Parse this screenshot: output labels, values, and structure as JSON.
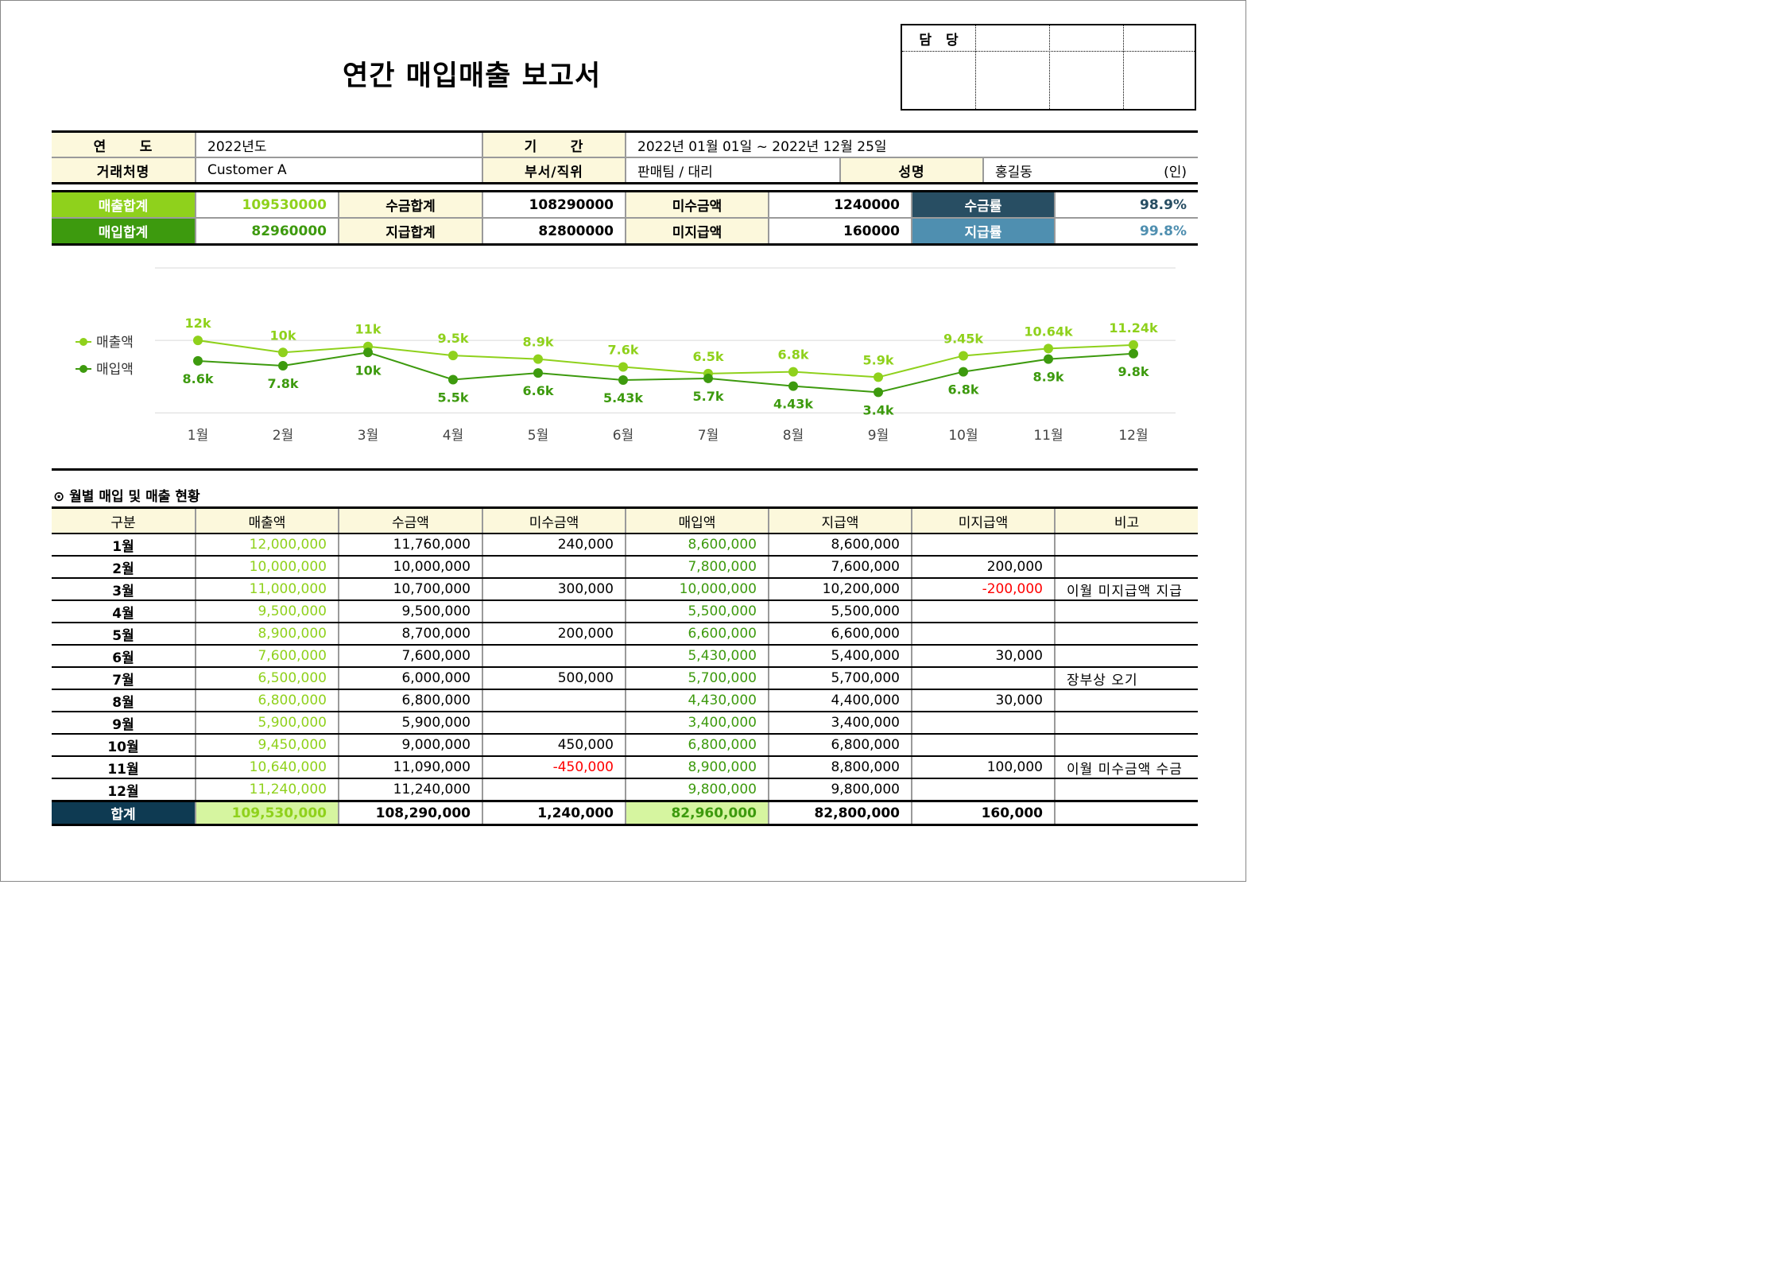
{
  "title": "연간 매입매출 보고서",
  "approval": {
    "label": "담당"
  },
  "info": {
    "year_label": "연      도",
    "year_value": "2022년도",
    "period_label": "기      간",
    "period_value": "2022년 01월 01일 ~ 2022년 12월 25일",
    "client_label": "거래처명",
    "client_value": "Customer A",
    "dept_label": "부서/직위",
    "dept_value": "판매팀 / 대리",
    "name_label": "성명",
    "name_value": "홍길동",
    "seal": "(인)"
  },
  "summary": {
    "sales_total_label": "매출합계",
    "sales_total": "109530000",
    "collected_total_label": "수금합계",
    "collected_total": "108290000",
    "uncollected_label": "미수금액",
    "uncollected": "1240000",
    "collection_rate_label": "수금률",
    "collection_rate": "98.9%",
    "purchase_total_label": "매입합계",
    "purchase_total": "82960000",
    "paid_total_label": "지급합계",
    "paid_total": "82800000",
    "unpaid_label": "미지급액",
    "unpaid": "160000",
    "payment_rate_label": "지급률",
    "payment_rate": "99.8%"
  },
  "colors": {
    "sales": "#8fd11c",
    "purchase": "#3d9a0e",
    "sales_header": "#8fd11c",
    "purchase_header": "#3d9a0e",
    "collection_rate_header": "#284e63",
    "payment_rate_header": "#4f8fb0",
    "negative": "#ff0000",
    "total_header": "#0e3a52",
    "total_highlight": "#d6f5a0",
    "label_bg": "#fcf8dc"
  },
  "chart_data": {
    "type": "line",
    "categories": [
      "1월",
      "2월",
      "3월",
      "4월",
      "5월",
      "6월",
      "7월",
      "8월",
      "9월",
      "10월",
      "11월",
      "12월"
    ],
    "series": [
      {
        "name": "매출액",
        "values": [
          12,
          10,
          11,
          9.5,
          8.9,
          7.6,
          6.5,
          6.8,
          5.9,
          9.45,
          10.64,
          11.24
        ],
        "labels": [
          "12k",
          "10k",
          "11k",
          "9.5k",
          "8.9k",
          "7.6k",
          "6.5k",
          "6.8k",
          "5.9k",
          "9.45k",
          "10.64k",
          "11.24k"
        ]
      },
      {
        "name": "매입액",
        "values": [
          8.6,
          7.8,
          10,
          5.5,
          6.6,
          5.43,
          5.7,
          4.43,
          3.4,
          6.8,
          8.9,
          9.8
        ],
        "labels": [
          "8.6k",
          "7.8k",
          "10k",
          "5.5k",
          "6.6k",
          "5.43k",
          "5.7k",
          "4.43k",
          "3.4k",
          "6.8k",
          "8.9k",
          "9.8k"
        ]
      }
    ],
    "ylim": [
      -0.5,
      24
    ],
    "legend": "left",
    "grid": true
  },
  "section_title": "⊙ 월별 매입 및 매출 현황",
  "monthly": {
    "headers": [
      "구분",
      "매출액",
      "수금액",
      "미수금액",
      "매입액",
      "지급액",
      "미지급액",
      "비고"
    ],
    "rows": [
      [
        "1월",
        "12,000,000",
        "11,760,000",
        "240,000",
        "8,600,000",
        "8,600,000",
        "",
        ""
      ],
      [
        "2월",
        "10,000,000",
        "10,000,000",
        "",
        "7,800,000",
        "7,600,000",
        "200,000",
        ""
      ],
      [
        "3월",
        "11,000,000",
        "10,700,000",
        "300,000",
        "10,000,000",
        "10,200,000",
        "-200,000",
        "이월 미지급액 지급"
      ],
      [
        "4월",
        "9,500,000",
        "9,500,000",
        "",
        "5,500,000",
        "5,500,000",
        "",
        ""
      ],
      [
        "5월",
        "8,900,000",
        "8,700,000",
        "200,000",
        "6,600,000",
        "6,600,000",
        "",
        ""
      ],
      [
        "6월",
        "7,600,000",
        "7,600,000",
        "",
        "5,430,000",
        "5,400,000",
        "30,000",
        ""
      ],
      [
        "7월",
        "6,500,000",
        "6,000,000",
        "500,000",
        "5,700,000",
        "5,700,000",
        "",
        "장부상 오기"
      ],
      [
        "8월",
        "6,800,000",
        "6,800,000",
        "",
        "4,430,000",
        "4,400,000",
        "30,000",
        ""
      ],
      [
        "9월",
        "5,900,000",
        "5,900,000",
        "",
        "3,400,000",
        "3,400,000",
        "",
        ""
      ],
      [
        "10월",
        "9,450,000",
        "9,000,000",
        "450,000",
        "6,800,000",
        "6,800,000",
        "",
        ""
      ],
      [
        "11월",
        "10,640,000",
        "11,090,000",
        "-450,000",
        "8,900,000",
        "8,800,000",
        "100,000",
        "이월 미수금액 수금"
      ],
      [
        "12월",
        "11,240,000",
        "11,240,000",
        "",
        "9,800,000",
        "9,800,000",
        "",
        ""
      ]
    ],
    "total": [
      "합계",
      "109,530,000",
      "108,290,000",
      "1,240,000",
      "82,960,000",
      "82,800,000",
      "160,000",
      ""
    ]
  }
}
